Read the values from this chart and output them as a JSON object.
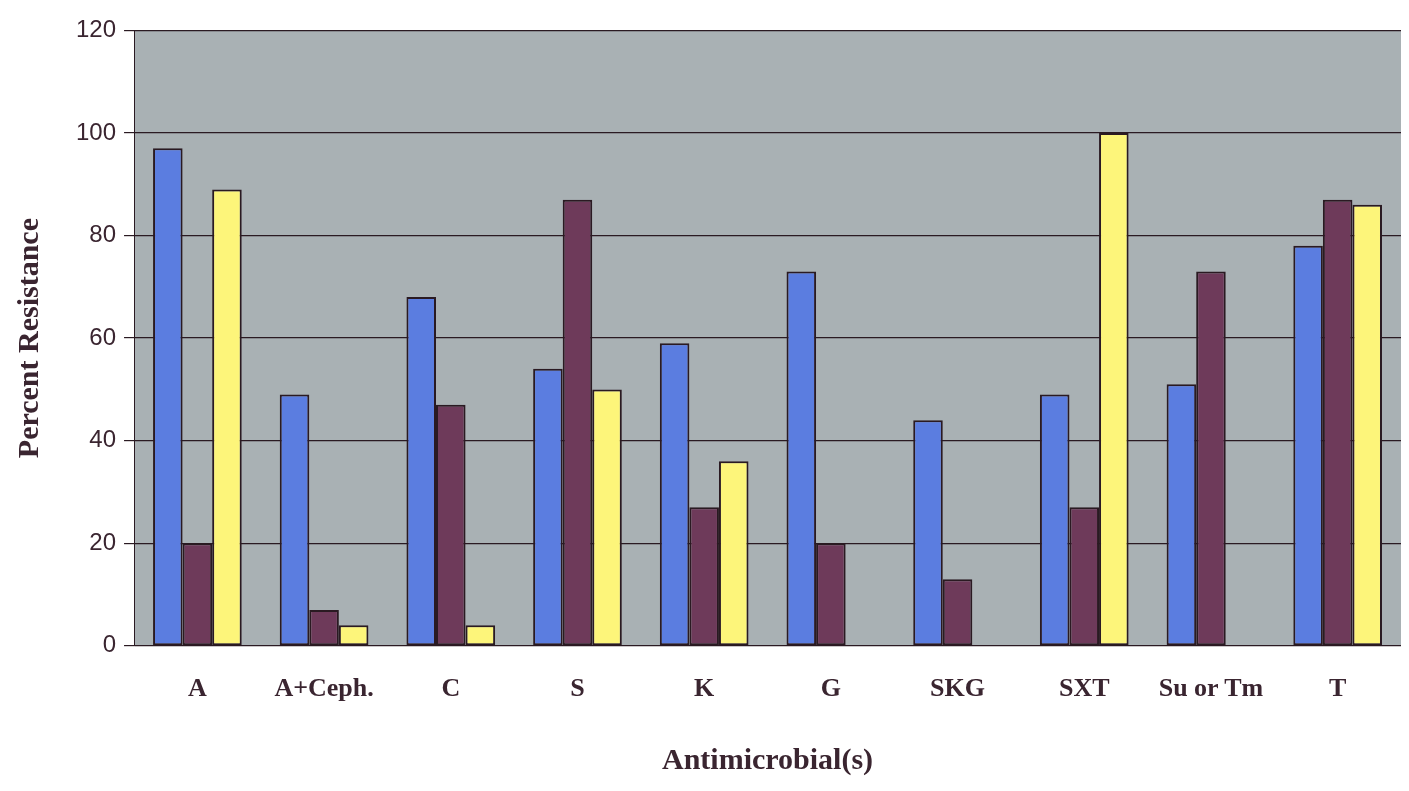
{
  "chart_data": {
    "type": "bar",
    "xlabel": "Antimicrobial(s)",
    "ylabel": "Percent Resistance",
    "categories": [
      "A",
      "A+Ceph.",
      "C",
      "S",
      "K",
      "G",
      "SKG",
      "SXT",
      "Su or Tm",
      "T"
    ],
    "series": [
      {
        "color": "#5b7de0",
        "values": [
          97,
          49,
          68,
          54,
          59,
          73,
          44,
          49,
          51,
          78
        ]
      },
      {
        "color": "#6e3a5a",
        "values": [
          20,
          7,
          47,
          87,
          27,
          20,
          13,
          27,
          73,
          87
        ]
      },
      {
        "color": "#fdf57a",
        "values": [
          89,
          4,
          4,
          50,
          36,
          null,
          null,
          100,
          null,
          86
        ]
      }
    ],
    "ylim": [
      0,
      120
    ],
    "yticks": [
      0,
      20,
      40,
      60,
      80,
      100,
      120
    ],
    "grid": "y",
    "legend": false
  }
}
